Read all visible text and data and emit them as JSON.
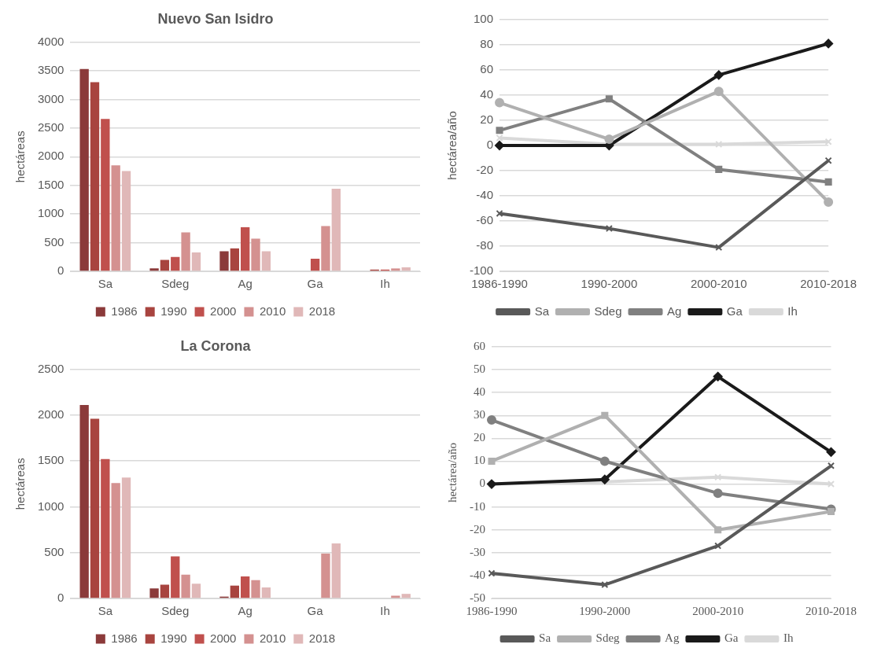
{
  "chart_data": [
    {
      "type": "bar",
      "title": "Nuevo San Isidro",
      "ylabel": "hectáreas",
      "categories": [
        "Sa",
        "Sdeg",
        "Ag",
        "Ga",
        "Ih"
      ],
      "ylim": [
        0,
        4000
      ],
      "yticks": [
        0,
        500,
        1000,
        1500,
        2000,
        2500,
        3000,
        3500,
        4000
      ],
      "grid": "y",
      "legend": "bottom",
      "series": [
        {
          "name": "1986",
          "color": "#8b3a3a",
          "values": [
            3530,
            50,
            350,
            0,
            0
          ]
        },
        {
          "name": "1990",
          "color": "#a8443f",
          "values": [
            3300,
            200,
            400,
            0,
            30
          ]
        },
        {
          "name": "2000",
          "color": "#c0504d",
          "values": [
            2660,
            250,
            770,
            220,
            30
          ]
        },
        {
          "name": "2010",
          "color": "#d49190",
          "values": [
            1850,
            680,
            570,
            790,
            50
          ]
        },
        {
          "name": "2018",
          "color": "#e0b8b8",
          "values": [
            1750,
            330,
            350,
            1440,
            70
          ]
        }
      ]
    },
    {
      "type": "line",
      "ylabel": "hectárea/año",
      "categories": [
        "1986-1990",
        "1990-2000",
        "2000-2010",
        "2010-2018"
      ],
      "ylim": [
        -100,
        100
      ],
      "yticks": [
        -100,
        -80,
        -60,
        -40,
        -20,
        0,
        20,
        40,
        60,
        80,
        100
      ],
      "grid": "y",
      "legend": "bottom",
      "line_style": "solid",
      "series": [
        {
          "name": "Sa",
          "color": "#595959",
          "marker": "cross",
          "values": [
            -54,
            -66,
            -81,
            -12
          ]
        },
        {
          "name": "Sdeg",
          "color": "#b0b0b0",
          "marker": "circle",
          "values": [
            34,
            5,
            43,
            -45
          ]
        },
        {
          "name": "Ag",
          "color": "#808080",
          "marker": "square",
          "values": [
            12,
            37,
            -19,
            -29
          ]
        },
        {
          "name": "Ga",
          "color": "#1a1a1a",
          "marker": "diamond",
          "values": [
            0,
            0,
            56,
            81
          ]
        },
        {
          "name": "Ih",
          "color": "#d9d9d9",
          "marker": "cross",
          "values": [
            6,
            1,
            1,
            3
          ]
        }
      ]
    },
    {
      "type": "bar",
      "title": "La Corona",
      "ylabel": "hectáreas",
      "categories": [
        "Sa",
        "Sdeg",
        "Ag",
        "Ga",
        "Ih"
      ],
      "ylim": [
        0,
        2500
      ],
      "yticks": [
        0,
        500,
        1000,
        1500,
        2000,
        2500
      ],
      "grid": "y",
      "legend": "bottom",
      "series": [
        {
          "name": "1986",
          "color": "#8b3a3a",
          "values": [
            2110,
            110,
            20,
            0,
            0
          ]
        },
        {
          "name": "1990",
          "color": "#a8443f",
          "values": [
            1960,
            150,
            140,
            0,
            0
          ]
        },
        {
          "name": "2000",
          "color": "#c0504d",
          "values": [
            1520,
            460,
            240,
            0,
            0
          ]
        },
        {
          "name": "2010",
          "color": "#d49190",
          "values": [
            1260,
            260,
            200,
            490,
            30
          ]
        },
        {
          "name": "2018",
          "color": "#e0b8b8",
          "values": [
            1320,
            160,
            120,
            600,
            50
          ]
        }
      ]
    },
    {
      "type": "line",
      "ylabel": "hectárea/año",
      "categories": [
        "1986-1990",
        "1990-2000",
        "2000-2010",
        "2010-2018"
      ],
      "ylim": [
        -50,
        60
      ],
      "yticks": [
        -50,
        -40,
        -30,
        -20,
        -10,
        0,
        10,
        20,
        30,
        40,
        50,
        60
      ],
      "grid": "y",
      "legend": "bottom",
      "line_style": "solid",
      "series": [
        {
          "name": "Sa",
          "color": "#595959",
          "marker": "cross",
          "values": [
            -39,
            -44,
            -27,
            8
          ]
        },
        {
          "name": "Sdeg",
          "color": "#b0b0b0",
          "marker": "square",
          "values": [
            10,
            30,
            -20,
            -12
          ]
        },
        {
          "name": "Ag",
          "color": "#808080",
          "marker": "circle",
          "values": [
            28,
            10,
            -4,
            -11
          ]
        },
        {
          "name": "Ga",
          "color": "#1a1a1a",
          "marker": "diamond",
          "values": [
            0,
            2,
            47,
            14
          ]
        },
        {
          "name": "Ih",
          "color": "#d9d9d9",
          "marker": "cross",
          "values": [
            0,
            1,
            3,
            0
          ]
        }
      ]
    }
  ]
}
